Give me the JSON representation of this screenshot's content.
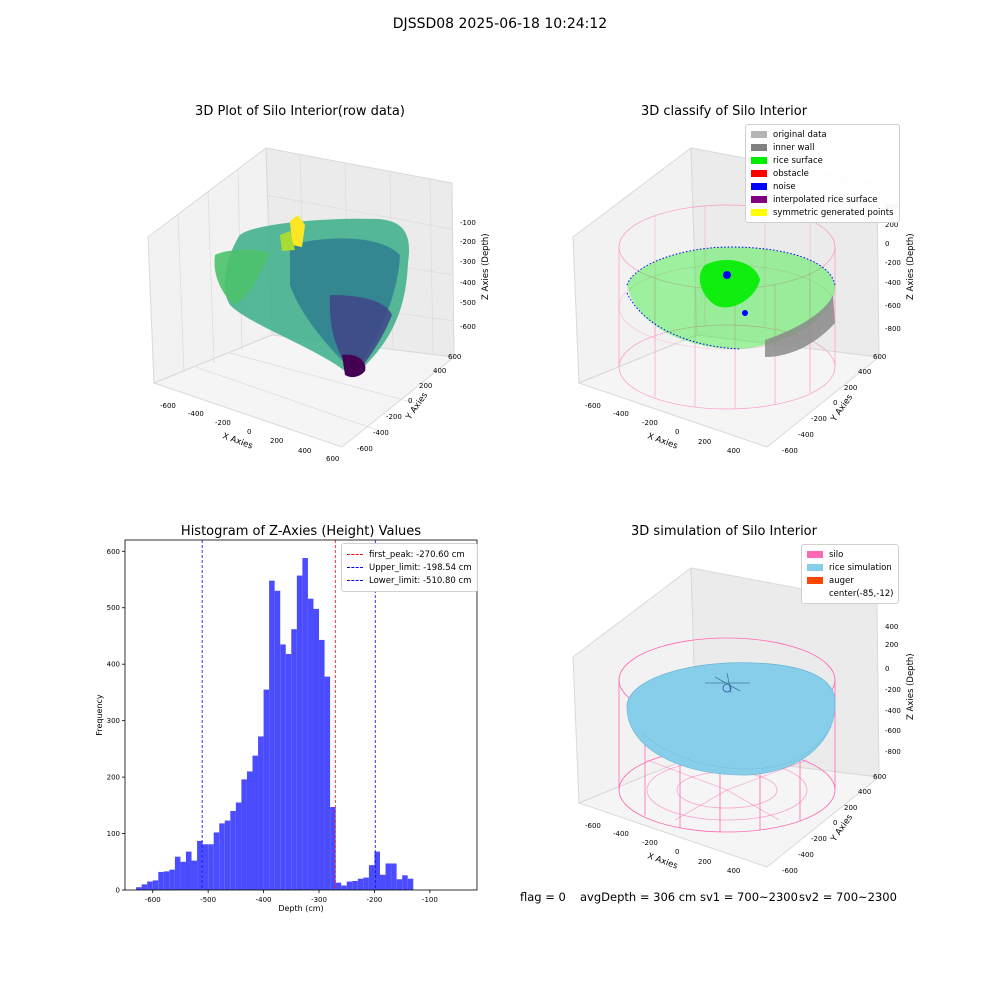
{
  "figure": {
    "title": "DJSSD08 2025-06-18 10:24:12",
    "footer": {
      "flag": "flag = 0",
      "avg_depth": "avgDepth = 306 cm",
      "sv1": "sv1 = 700~2300",
      "sv2": "sv2 = 700~2300"
    }
  },
  "chart_data": [
    {
      "type": "scatter",
      "subtype": "3d-point-cloud",
      "title": "3D Plot of Silo Interior(row data)",
      "xlabel": "X Axies",
      "ylabel": "Y Axies",
      "zlabel": "Z Axies (Depth)",
      "xticks": [
        "-600",
        "-400",
        "-200",
        "0",
        "200",
        "400",
        "600"
      ],
      "yticks": [
        "-600",
        "-400",
        "-200",
        "0",
        "200",
        "400",
        "600"
      ],
      "zticks": [
        "-100",
        "-200",
        "-300",
        "-400",
        "-500",
        "-600"
      ],
      "colormap": "viridis"
    },
    {
      "type": "scatter",
      "subtype": "3d-classified-point-cloud",
      "title": "3D classify of Silo Interior",
      "xlabel": "X Axies",
      "ylabel": "Y Axies",
      "zlabel": "Z Axies (Depth)",
      "xticks": [
        "-600",
        "-400",
        "-200",
        "0",
        "200",
        "400"
      ],
      "yticks": [
        "-600",
        "-400",
        "-200",
        "0",
        "200",
        "400",
        "600"
      ],
      "zticks": [
        "400",
        "200",
        "0",
        "-200",
        "-400",
        "-600",
        "-800"
      ],
      "legend_position": "top-right",
      "legend": [
        {
          "label": "original data",
          "color": "#b4b4b4"
        },
        {
          "label": "inner wall",
          "color": "#808080"
        },
        {
          "label": "rice surface",
          "color": "#00ee00"
        },
        {
          "label": "obstacle",
          "color": "#ff0000"
        },
        {
          "label": "noise",
          "color": "#0000ff"
        },
        {
          "label": "interpolated rice surface",
          "color": "#800080"
        },
        {
          "label": "symmetric generated points",
          "color": "#ffff00"
        }
      ]
    },
    {
      "type": "bar",
      "subtype": "histogram",
      "title": "Histogram of Z-Axies (Height) Values",
      "xlabel": "Depth (cm)",
      "ylabel": "Frequency",
      "xlim": [
        -650,
        -15
      ],
      "ylim": [
        0,
        620
      ],
      "xticks": [
        -600,
        -500,
        -400,
        -300,
        -200,
        -100
      ],
      "yticks": [
        0,
        100,
        200,
        300,
        400,
        500,
        600
      ],
      "bar_color": "#4c4cff",
      "bin_width": 10,
      "bins": [
        {
          "x": -630,
          "y": 5
        },
        {
          "x": -620,
          "y": 10
        },
        {
          "x": -610,
          "y": 15
        },
        {
          "x": -600,
          "y": 17
        },
        {
          "x": -590,
          "y": 32
        },
        {
          "x": -580,
          "y": 33
        },
        {
          "x": -570,
          "y": 36
        },
        {
          "x": -560,
          "y": 59
        },
        {
          "x": -550,
          "y": 50
        },
        {
          "x": -540,
          "y": 68
        },
        {
          "x": -530,
          "y": 52
        },
        {
          "x": -520,
          "y": 87
        },
        {
          "x": -510,
          "y": 81
        },
        {
          "x": -500,
          "y": 81
        },
        {
          "x": -490,
          "y": 102
        },
        {
          "x": -480,
          "y": 118
        },
        {
          "x": -470,
          "y": 123
        },
        {
          "x": -460,
          "y": 140
        },
        {
          "x": -450,
          "y": 155
        },
        {
          "x": -440,
          "y": 196
        },
        {
          "x": -430,
          "y": 210
        },
        {
          "x": -420,
          "y": 238
        },
        {
          "x": -410,
          "y": 272
        },
        {
          "x": -400,
          "y": 355
        },
        {
          "x": -390,
          "y": 548
        },
        {
          "x": -380,
          "y": 530
        },
        {
          "x": -370,
          "y": 435
        },
        {
          "x": -360,
          "y": 418
        },
        {
          "x": -350,
          "y": 462
        },
        {
          "x": -340,
          "y": 557
        },
        {
          "x": -330,
          "y": 588
        },
        {
          "x": -320,
          "y": 516
        },
        {
          "x": -310,
          "y": 498
        },
        {
          "x": -300,
          "y": 443
        },
        {
          "x": -290,
          "y": 378
        },
        {
          "x": -280,
          "y": 147
        },
        {
          "x": -270,
          "y": 13
        },
        {
          "x": -260,
          "y": 8
        },
        {
          "x": -250,
          "y": 15
        },
        {
          "x": -240,
          "y": 16
        },
        {
          "x": -230,
          "y": 20
        },
        {
          "x": -220,
          "y": 22
        },
        {
          "x": -210,
          "y": 44
        },
        {
          "x": -200,
          "y": 68
        },
        {
          "x": -190,
          "y": 27
        },
        {
          "x": -180,
          "y": 47
        },
        {
          "x": -170,
          "y": 47
        },
        {
          "x": -160,
          "y": 19
        },
        {
          "x": -150,
          "y": 26
        },
        {
          "x": -140,
          "y": 20
        }
      ],
      "vlines": [
        {
          "label": "first_peak: -270.60 cm",
          "x": -270.6,
          "color": "#ff0000"
        },
        {
          "label": "Upper_limit: -198.54 cm",
          "x": -198.54,
          "color": "#0000ff"
        },
        {
          "label": "Lower_limit: -510.80 cm",
          "x": -510.8,
          "color": "#0000ff"
        }
      ],
      "legend_position": "top-right"
    },
    {
      "type": "scatter",
      "subtype": "3d-surface-simulation",
      "title": "3D simulation of Silo Interior",
      "xlabel": "X Axies",
      "ylabel": "Y Axies",
      "zlabel": "Z Axies (Depth)",
      "xticks": [
        "-600",
        "-400",
        "-200",
        "0",
        "200",
        "400"
      ],
      "yticks": [
        "-600",
        "-400",
        "-200",
        "0",
        "200",
        "400",
        "600"
      ],
      "zticks": [
        "400",
        "200",
        "0",
        "-200",
        "-400",
        "-600",
        "-800"
      ],
      "legend_position": "top-right",
      "legend": [
        {
          "label": "silo",
          "color": "#ff69b4"
        },
        {
          "label": "rice simulation",
          "color": "#87ceeb"
        },
        {
          "label": "auger",
          "color": "#ff4500"
        },
        {
          "label": "center(-85,-12)",
          "color": "#ffffff"
        }
      ]
    }
  ]
}
